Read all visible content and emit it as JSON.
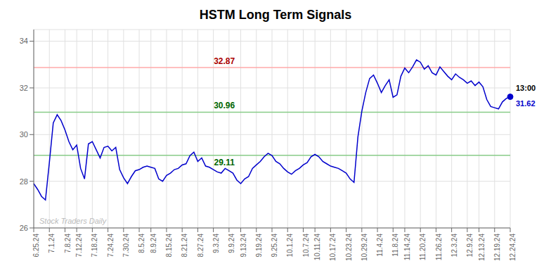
{
  "chart_data": {
    "type": "line",
    "title": "HSTM Long Term Signals",
    "categories": [
      "6.25.24",
      null,
      null,
      null,
      "7.1.24",
      null,
      null,
      null,
      "7.8.24",
      null,
      null,
      "7.12.24",
      null,
      null,
      null,
      "7.18.24",
      null,
      null,
      null,
      "7.24.24",
      null,
      null,
      null,
      "7.30.24",
      null,
      null,
      null,
      "8.5.24",
      null,
      null,
      "8.9.24",
      null,
      null,
      null,
      "8.15.24",
      null,
      null,
      null,
      "8.21.24",
      null,
      null,
      null,
      "8.27.24",
      null,
      null,
      null,
      "9.3.24",
      null,
      null,
      null,
      "9.9.24",
      null,
      null,
      "9.13.24",
      null,
      null,
      null,
      "9.19.24",
      null,
      null,
      null,
      "9.25.24",
      null,
      null,
      null,
      "10.1.24",
      null,
      null,
      null,
      "10.7.24",
      null,
      null,
      "10.11.24",
      null,
      null,
      null,
      "10.17.24",
      null,
      null,
      null,
      "10.23.24",
      null,
      null,
      null,
      "10.29.24",
      null,
      null,
      null,
      "11.4.24",
      null,
      null,
      null,
      "11.8.24",
      null,
      null,
      "11.14.24",
      null,
      null,
      null,
      "11.20.24",
      null,
      null,
      null,
      "11.26.24",
      null,
      null,
      null,
      "12.3.24",
      null,
      null,
      null,
      "12.9.24",
      null,
      null,
      "12.13.24",
      null,
      null,
      null,
      "12.19.24",
      null,
      null,
      null,
      "12.24.24"
    ],
    "values": [
      27.9,
      27.65,
      27.35,
      27.2,
      28.8,
      30.5,
      30.85,
      30.6,
      30.2,
      29.7,
      29.35,
      29.55,
      28.55,
      28.1,
      29.6,
      29.7,
      29.35,
      29.0,
      29.45,
      29.5,
      29.3,
      29.45,
      28.5,
      28.15,
      27.9,
      28.2,
      28.45,
      28.5,
      28.6,
      28.65,
      28.6,
      28.55,
      28.1,
      28.0,
      28.25,
      28.35,
      28.5,
      28.55,
      28.7,
      28.75,
      29.1,
      29.25,
      28.85,
      29.0,
      28.65,
      28.6,
      28.5,
      28.4,
      28.35,
      28.55,
      28.45,
      28.35,
      28.05,
      27.9,
      28.1,
      28.2,
      28.55,
      28.7,
      28.85,
      29.05,
      29.2,
      29.1,
      28.85,
      28.75,
      28.55,
      28.4,
      28.3,
      28.45,
      28.55,
      28.7,
      28.8,
      29.05,
      29.15,
      29.05,
      28.85,
      28.75,
      28.65,
      28.6,
      28.55,
      28.45,
      28.35,
      28.1,
      27.95,
      29.9,
      31.0,
      31.8,
      32.4,
      32.55,
      32.2,
      31.8,
      32.1,
      32.35,
      31.6,
      31.7,
      32.5,
      32.85,
      32.65,
      32.9,
      33.2,
      33.1,
      32.8,
      32.95,
      32.65,
      32.55,
      32.9,
      32.7,
      32.5,
      32.35,
      32.6,
      32.45,
      32.35,
      32.2,
      32.3,
      32.1,
      32.25,
      32.05,
      31.5,
      31.2,
      31.15,
      31.1,
      31.4,
      31.55,
      31.62
    ],
    "color": "#0000cc",
    "ylim": [
      26,
      34.5
    ],
    "yticks": [
      26,
      28,
      30,
      32,
      34
    ],
    "grid": true,
    "hlines": [
      {
        "value": 32.87,
        "label": "32.87",
        "color": "#ffaaaa",
        "label_color": "#aa0000",
        "label_position": "top"
      },
      {
        "value": 30.96,
        "label": "30.96",
        "color": "#88cc88",
        "label_color": "#006600",
        "label_position": "top"
      },
      {
        "value": 29.11,
        "label": "29.11",
        "color": "#88cc88",
        "label_color": "#006600",
        "label_position": "bottom"
      }
    ],
    "end_labels": [
      {
        "text": "13:00",
        "color": "#000000"
      },
      {
        "text": "31.62",
        "color": "#0000cc"
      }
    ],
    "watermark": {
      "text": "Stock Traders Daily",
      "color": "#bbbbbb"
    }
  }
}
